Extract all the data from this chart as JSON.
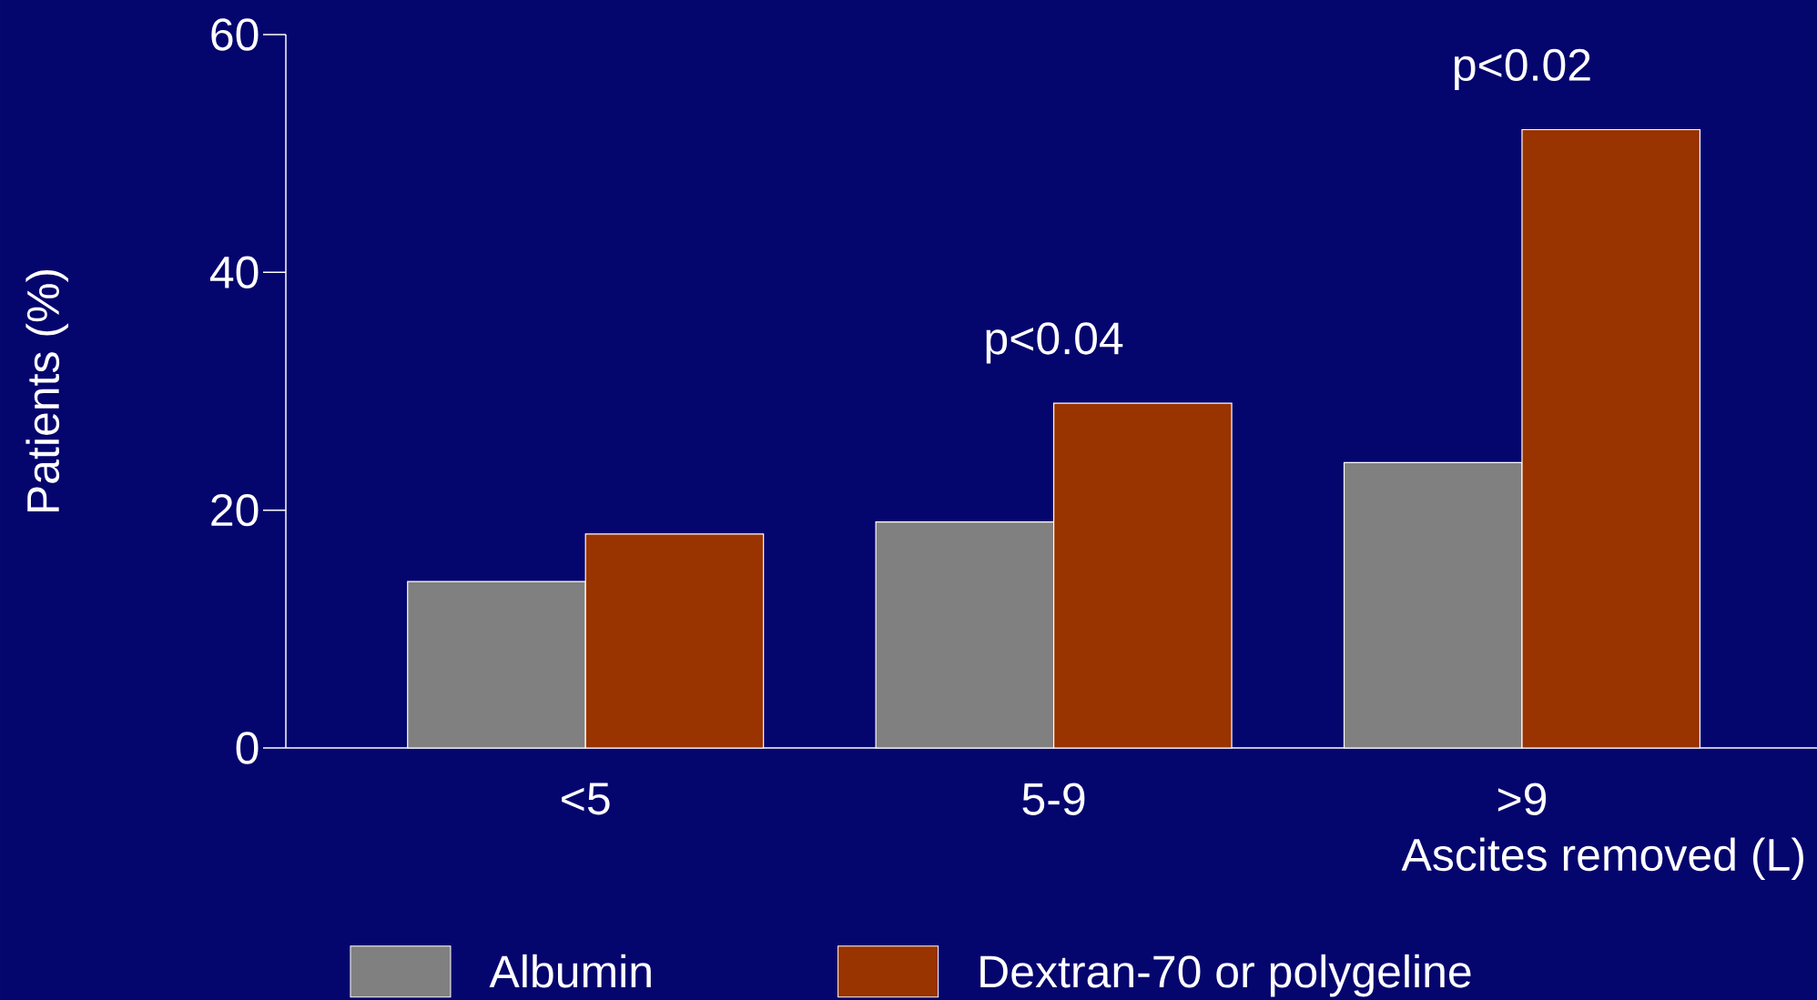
{
  "chart_data": {
    "type": "bar",
    "ylabel": "Patients (%)",
    "xlabel": "Ascites removed (L)",
    "categories": [
      "<5",
      "5-9",
      ">9"
    ],
    "series": [
      {
        "name": "Albumin",
        "color": "#808080",
        "values": [
          14,
          19,
          24
        ]
      },
      {
        "name": "Dextran-70 or polygeline",
        "color": "#993300",
        "values": [
          18,
          29,
          52
        ]
      }
    ],
    "ylim": [
      0,
      60
    ],
    "yticks": [
      0,
      20,
      40,
      60
    ],
    "grid": false,
    "legend": "bottom",
    "annotations": [
      "p<0.04",
      "p<0.02"
    ]
  }
}
